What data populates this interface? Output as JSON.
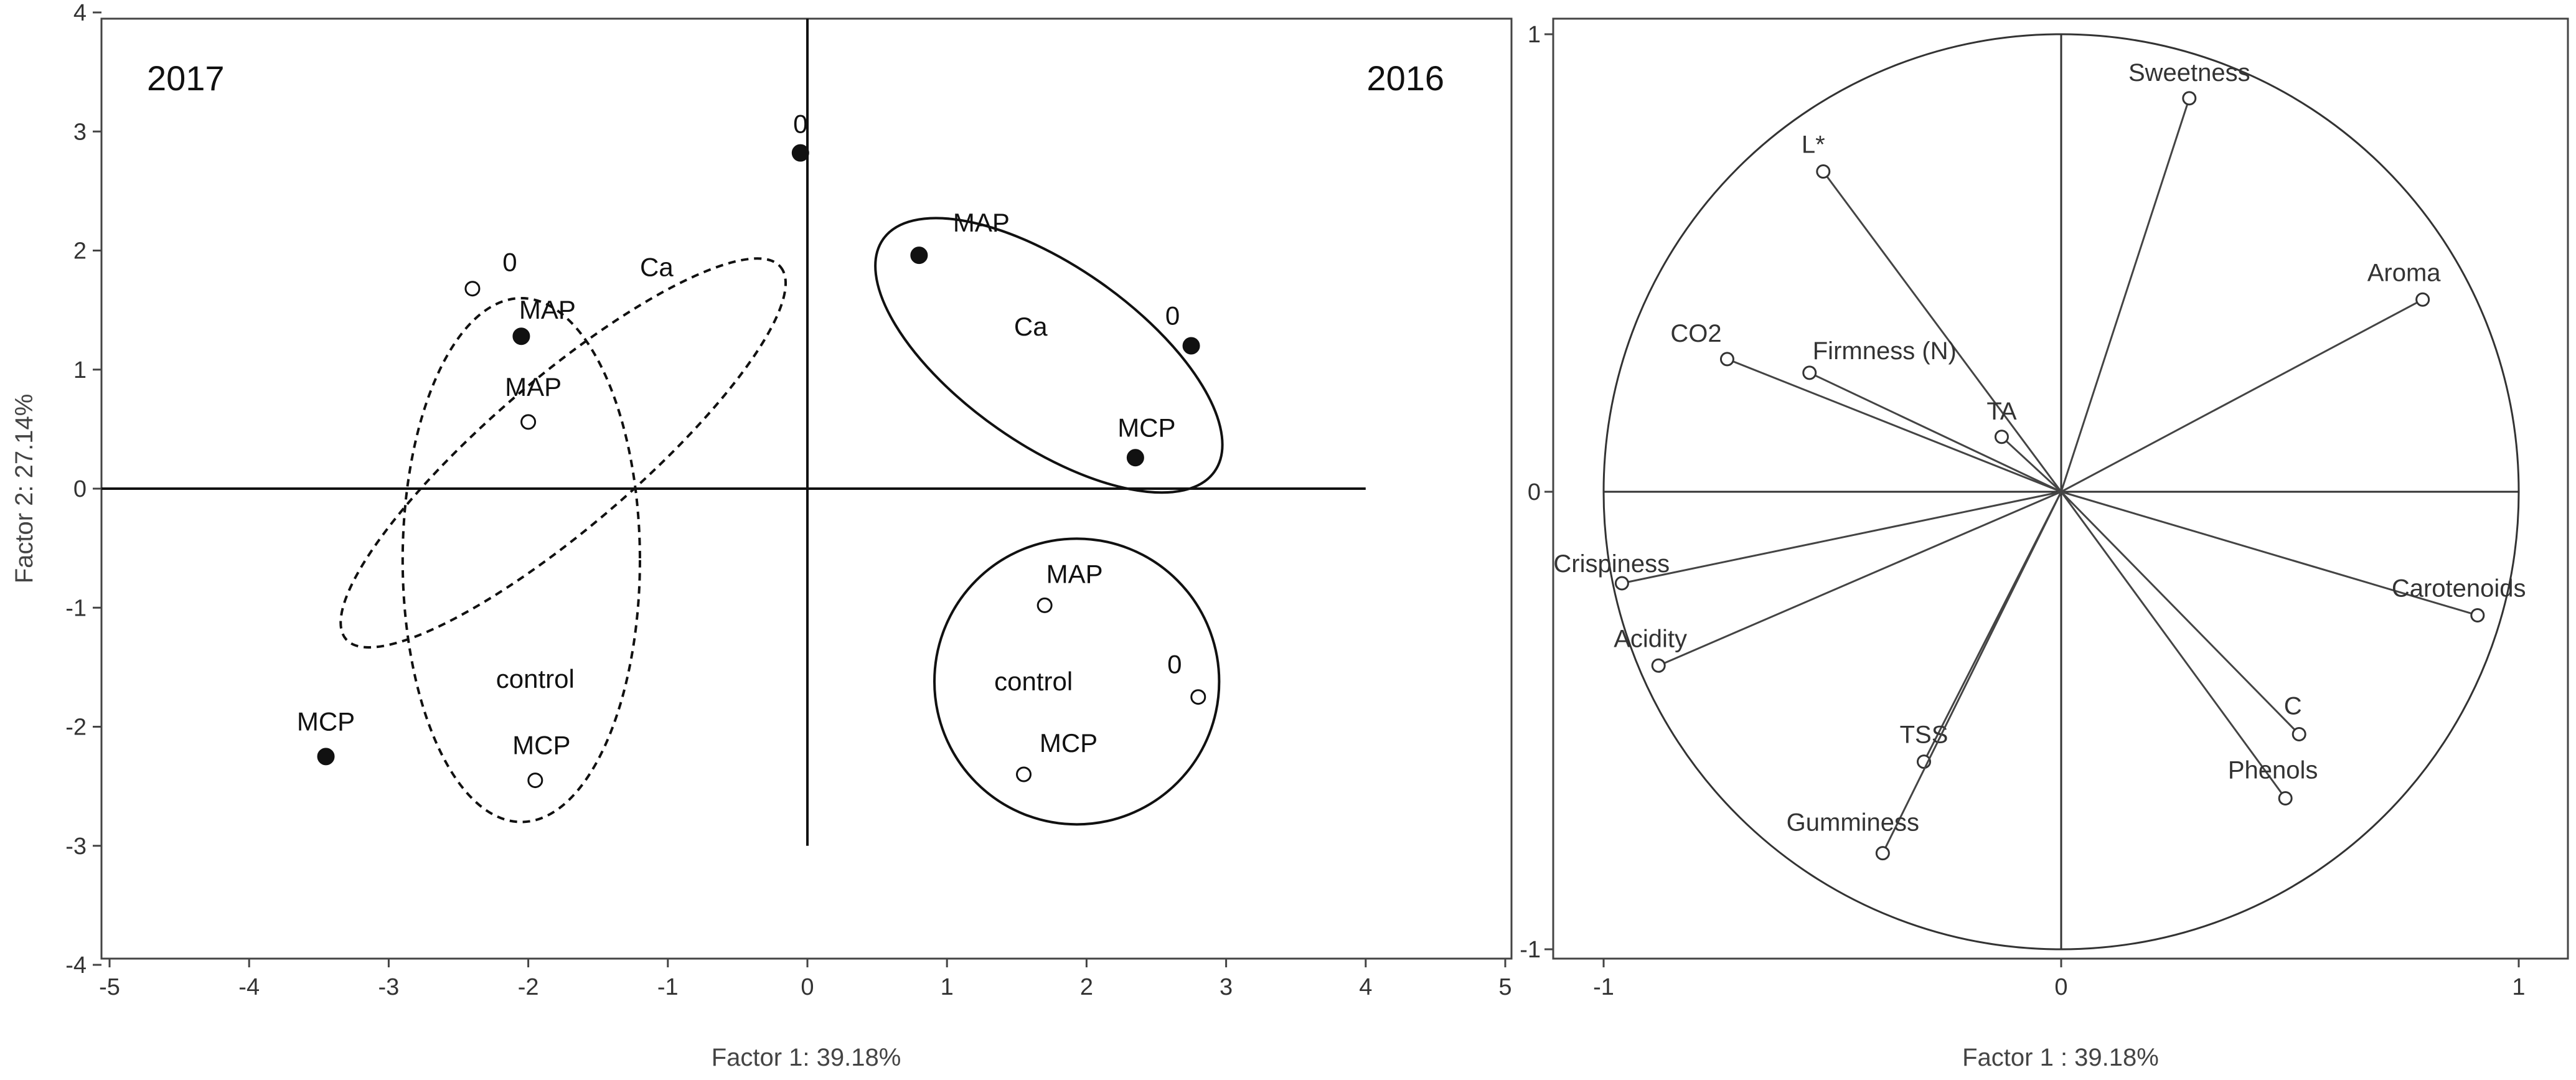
{
  "chart_data": [
    {
      "type": "scatter",
      "xlabel": "Factor 1: 39.18%",
      "ylabel": "Factor 2: 27.14%",
      "xlim": [
        -5,
        5
      ],
      "ylim": [
        -4,
        4
      ],
      "x_ticks": [
        -5,
        -4,
        -3,
        -2,
        -1,
        0,
        1,
        2,
        3,
        4,
        5
      ],
      "y_ticks": [
        -4,
        -3,
        -2,
        -1,
        0,
        1,
        2,
        3,
        4
      ],
      "grid": false,
      "year_labels": [
        {
          "text": "2017",
          "corner": "top-left"
        },
        {
          "text": "2016",
          "corner": "top-right"
        }
      ],
      "points": [
        {
          "label": "0",
          "x": -0.05,
          "y": 2.82,
          "marker": "filled"
        },
        {
          "label": "MAP",
          "x": -2.05,
          "y": 1.28,
          "marker": "filled"
        },
        {
          "label": "MCP",
          "x": -3.45,
          "y": -2.25,
          "marker": "filled"
        },
        {
          "label": "0",
          "x": -2.4,
          "y": 1.68,
          "marker": "open"
        },
        {
          "label": "MAP",
          "x": -2.0,
          "y": 0.56,
          "marker": "open"
        },
        {
          "label": "MCP",
          "x": -1.95,
          "y": -2.45,
          "marker": "open"
        },
        {
          "label": "MAP",
          "x": 0.8,
          "y": 1.96,
          "marker": "filled"
        },
        {
          "label": "0",
          "x": 2.75,
          "y": 1.2,
          "marker": "filled"
        },
        {
          "label": "MCP",
          "x": 2.35,
          "y": 0.26,
          "marker": "filled"
        },
        {
          "label": "MAP",
          "x": 1.7,
          "y": -0.98,
          "marker": "open"
        },
        {
          "label": "0",
          "x": 2.8,
          "y": -1.75,
          "marker": "open"
        },
        {
          "label": "MCP",
          "x": 1.55,
          "y": -2.4,
          "marker": "open"
        }
      ],
      "group_labels": [
        {
          "text": "Ca",
          "x": -1.08,
          "y": 1.86
        },
        {
          "text": "control",
          "x": -1.95,
          "y": -1.6
        },
        {
          "text": "Ca",
          "x": 1.6,
          "y": 1.36
        },
        {
          "text": "control",
          "x": 1.62,
          "y": -1.62
        }
      ],
      "groups": [
        {
          "members": [
            "0",
            "MAP",
            "MCP"
          ],
          "marker": "filled",
          "year": "2017",
          "line": "dashed"
        },
        {
          "members": [
            "0",
            "MAP",
            "MCP"
          ],
          "marker": "open",
          "year": "2017",
          "line": "dashed"
        },
        {
          "members": [
            "MAP",
            "0",
            "MCP"
          ],
          "marker": "filled",
          "year": "2016",
          "line": "solid"
        },
        {
          "members": [
            "MAP",
            "0",
            "MCP"
          ],
          "marker": "open",
          "year": "2016",
          "line": "solid"
        }
      ]
    },
    {
      "type": "scatter",
      "xlabel": "Factor 1 : 39.18%",
      "ylabel": "",
      "xlim": [
        -1,
        1
      ],
      "ylim": [
        -1,
        1
      ],
      "x_ticks": [
        -1,
        0,
        1
      ],
      "y_ticks": [
        -1,
        0,
        1
      ],
      "correlation_circle": true,
      "vectors": [
        {
          "label": "Sweetness",
          "x": 0.28,
          "y": 0.86
        },
        {
          "label": "L*",
          "x": -0.52,
          "y": 0.7
        },
        {
          "label": "Aroma",
          "x": 0.79,
          "y": 0.42
        },
        {
          "label": "CO2",
          "x": -0.73,
          "y": 0.29
        },
        {
          "label": "Firmness (N)",
          "x": -0.55,
          "y": 0.26
        },
        {
          "label": "TA",
          "x": -0.13,
          "y": 0.12
        },
        {
          "label": "Crispiness",
          "x": -0.96,
          "y": -0.2
        },
        {
          "label": "Carotenoids",
          "x": 0.91,
          "y": -0.27
        },
        {
          "label": "Acidity",
          "x": -0.88,
          "y": -0.38
        },
        {
          "label": "C",
          "x": 0.52,
          "y": -0.53
        },
        {
          "label": "TSS",
          "x": -0.3,
          "y": -0.59
        },
        {
          "label": "Phenols",
          "x": 0.49,
          "y": -0.67
        },
        {
          "label": "Gumminess",
          "x": -0.39,
          "y": -0.79
        }
      ]
    }
  ]
}
